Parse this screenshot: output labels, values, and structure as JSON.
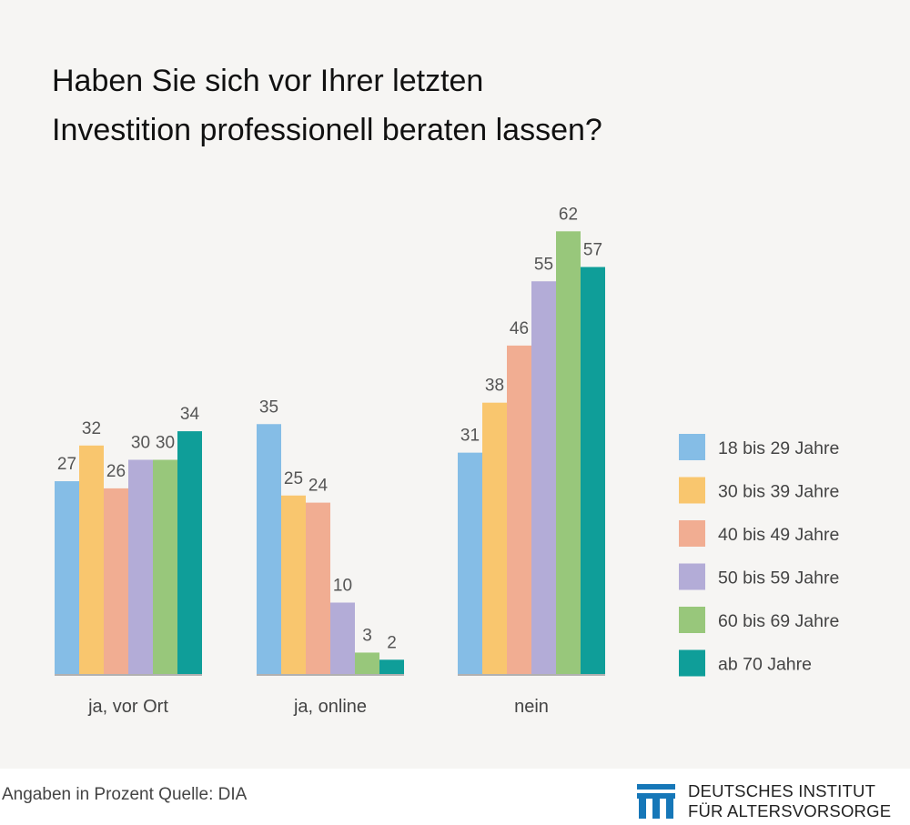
{
  "title_line1": "Haben Sie sich vor Ihrer letzten",
  "title_line2": "Investition professionell beraten lassen?",
  "footer": {
    "note": "Angaben in Prozent  Quelle: DIA",
    "logo_line1": "DEUTSCHES INSTITUT",
    "logo_line2": "FÜR ALTERSVORSORGE"
  },
  "colors": {
    "background": "#f6f5f3",
    "logo": "#1677b8"
  },
  "chart_data": {
    "type": "bar",
    "categories": [
      "ja, vor Ort",
      "ja, online",
      "nein"
    ],
    "series": [
      {
        "name": "18 bis 29 Jahre",
        "color": "#85bde6",
        "values": [
          27,
          35,
          31
        ]
      },
      {
        "name": "30 bis 39 Jahre",
        "color": "#f9c66e",
        "values": [
          32,
          25,
          38
        ]
      },
      {
        "name": "40 bis 49 Jahre",
        "color": "#f1ad92",
        "values": [
          26,
          24,
          46
        ]
      },
      {
        "name": "50 bis 59 Jahre",
        "color": "#b3acd7",
        "values": [
          30,
          10,
          55
        ]
      },
      {
        "name": "60 bis 69 Jahre",
        "color": "#98c77b",
        "values": [
          30,
          3,
          62
        ]
      },
      {
        "name": "ab 70 Jahre",
        "color": "#0f9e99",
        "values": [
          34,
          2,
          57
        ]
      }
    ],
    "data_labels": true,
    "legend_position": "right",
    "grid": false
  }
}
